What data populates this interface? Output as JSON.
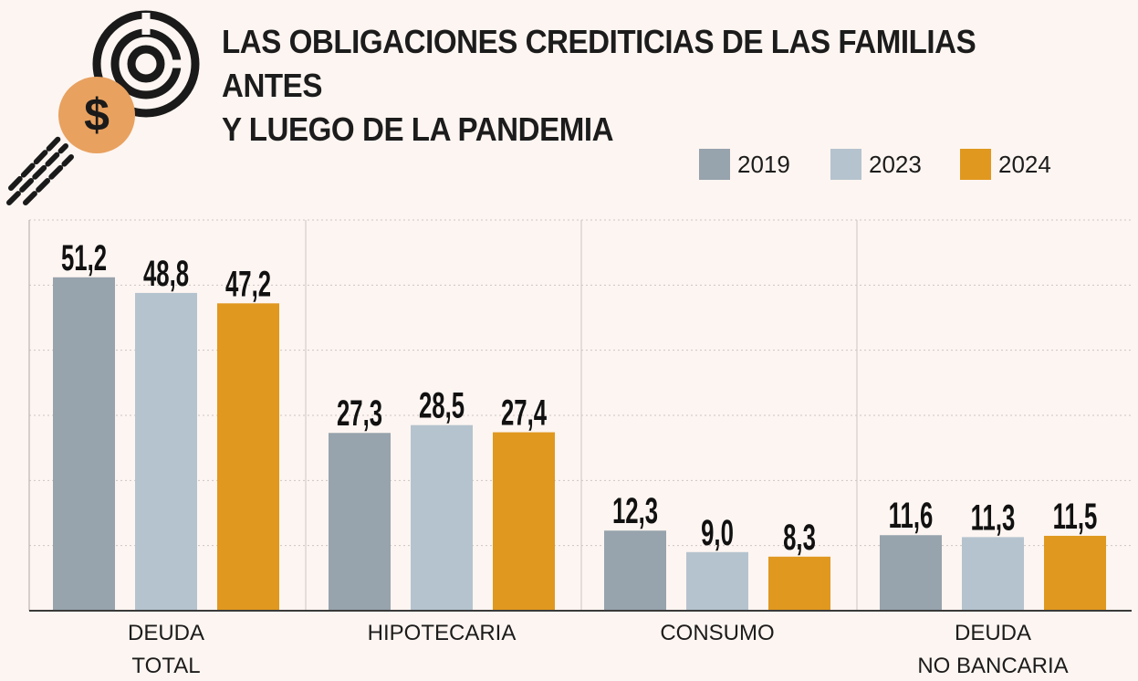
{
  "title_line1": "LAS OBLIGACIONES CREDITICIAS DE LAS FAMILIAS ANTES",
  "title_line2": "Y LUEGO DE LA PANDEMIA",
  "colors": {
    "background": "#fdf5f1",
    "series_2019": "#97a3ad",
    "series_2023": "#b5c3ce",
    "series_2024": "#e0981f",
    "icon_dark": "#1a1a1a",
    "icon_accent": "#e8a15f"
  },
  "logo_icon": "dollar-coin-target-icon",
  "chart_data": {
    "type": "bar",
    "title": "LAS OBLIGACIONES CREDITICIAS DE LAS FAMILIAS ANTES Y LUEGO DE LA PANDEMIA",
    "categories": [
      [
        "DEUDA",
        "TOTAL"
      ],
      [
        "HIPOTECARIA"
      ],
      [
        "CONSUMO"
      ],
      [
        "DEUDA",
        "NO BANCARIA"
      ]
    ],
    "series": [
      {
        "name": "2019",
        "color": "#97a3ad",
        "values": [
          51.2,
          27.3,
          12.3,
          11.6
        ],
        "labels": [
          "51,2",
          "27,3",
          "12,3",
          "11,6"
        ]
      },
      {
        "name": "2023",
        "color": "#b5c3ce",
        "values": [
          48.8,
          28.5,
          9.0,
          11.3
        ],
        "labels": [
          "48,8",
          "28,5",
          "9,0",
          "11,3"
        ]
      },
      {
        "name": "2024",
        "color": "#e0981f",
        "values": [
          47.2,
          27.4,
          8.3,
          11.5
        ],
        "labels": [
          "47,2",
          "27,4",
          "8,3",
          "11,5"
        ]
      }
    ],
    "ylim": [
      0,
      60
    ],
    "grid": true,
    "legend_position": "top-right"
  }
}
